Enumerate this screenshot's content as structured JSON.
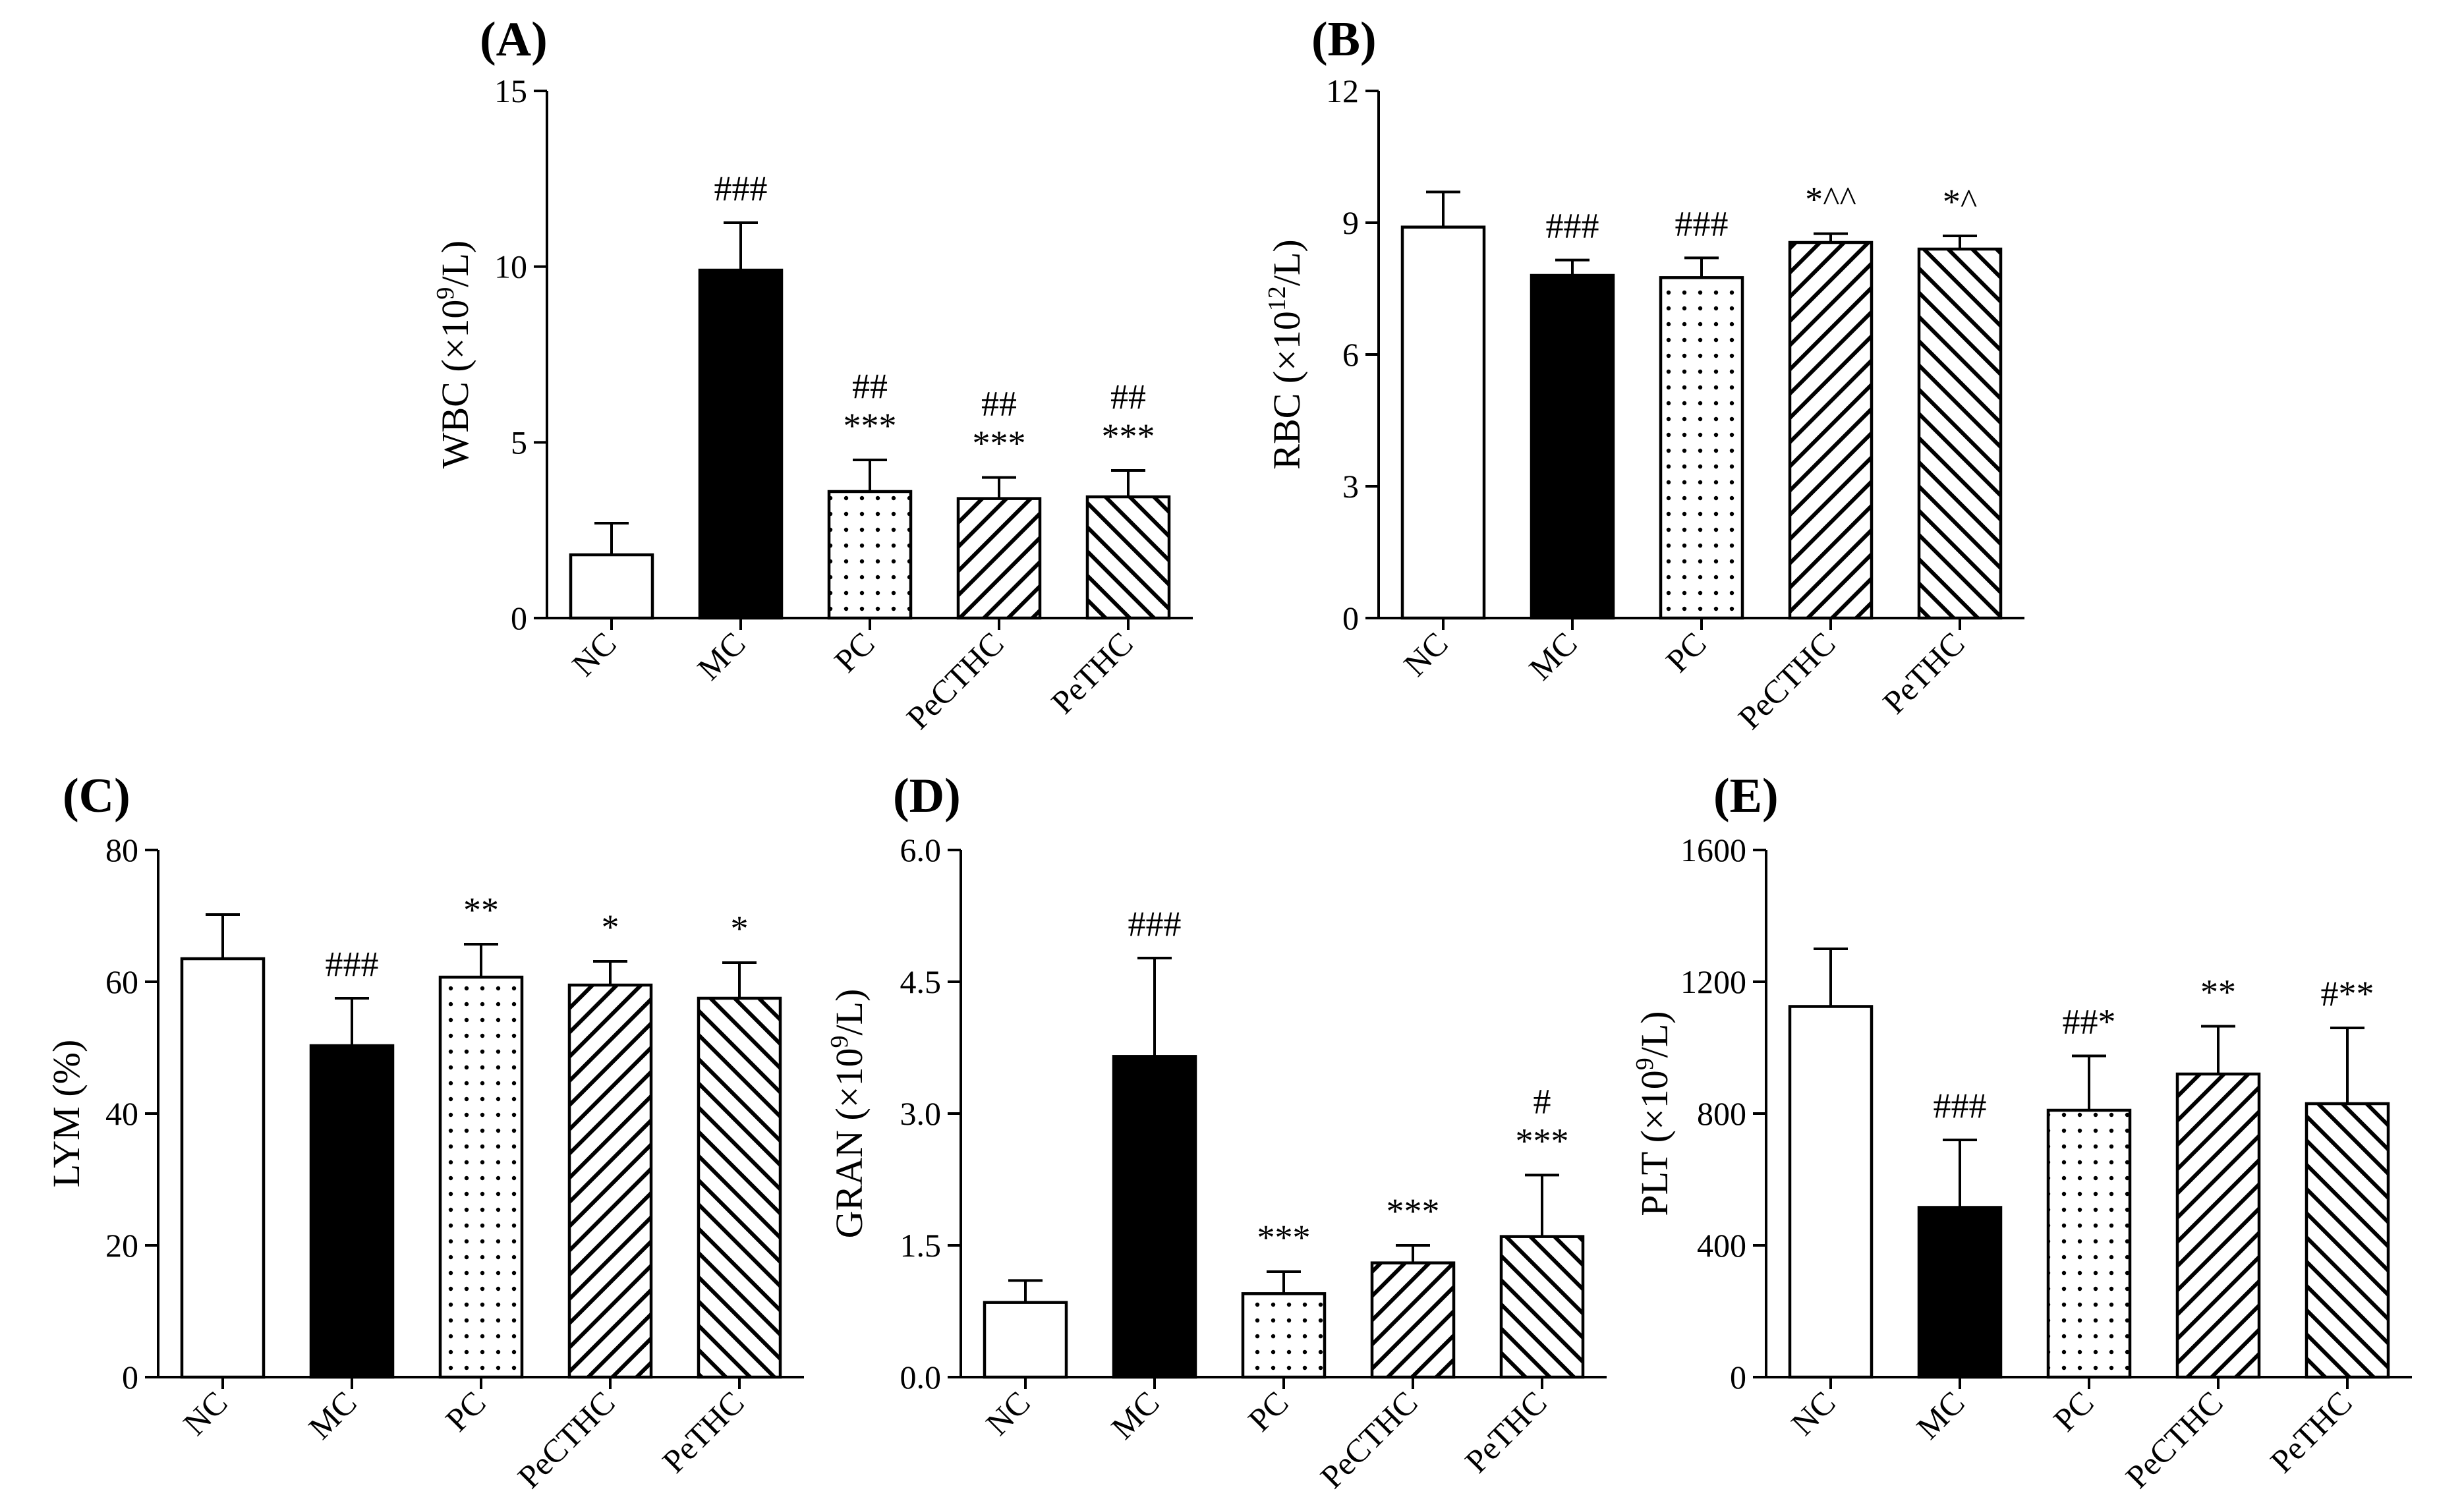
{
  "figure": {
    "panels_count": 5
  },
  "styles": {
    "ink": "#000000",
    "background": "#ffffff",
    "fills": [
      "open",
      "solid",
      "dots",
      "diag-right",
      "diag-left"
    ]
  },
  "chart_data": [
    {
      "type": "bar",
      "panel": "(A)",
      "title": "",
      "ylabel_pre": "WBC (×10",
      "ylabel_sup": "9",
      "ylabel_post": "/L)",
      "xlabel": "",
      "categories": [
        "NC",
        "MC",
        "PC",
        "PeCTHC",
        "PeTHC"
      ],
      "values": [
        1.8,
        9.9,
        3.6,
        3.4,
        3.45
      ],
      "errors": [
        0.9,
        1.35,
        0.9,
        0.6,
        0.75
      ],
      "ylim": [
        0,
        15
      ],
      "yticks": [
        0,
        5,
        10,
        15
      ],
      "ytick_labels": [
        "0",
        "5",
        "10",
        "15"
      ],
      "annotations": [
        [],
        [
          "###"
        ],
        [
          "##",
          "***"
        ],
        [
          "##",
          "***"
        ],
        [
          "##",
          "***"
        ]
      ]
    },
    {
      "type": "bar",
      "panel": "(B)",
      "title": "",
      "ylabel_pre": "RBC (×10",
      "ylabel_sup": "12",
      "ylabel_post": "/L)",
      "xlabel": "",
      "categories": [
        "NC",
        "MC",
        "PC",
        "PeCTHC",
        "PeTHC"
      ],
      "values": [
        8.9,
        7.8,
        7.75,
        8.55,
        8.4
      ],
      "errors": [
        0.8,
        0.35,
        0.45,
        0.2,
        0.3
      ],
      "ylim": [
        0,
        12
      ],
      "yticks": [
        0,
        3,
        6,
        9,
        12
      ],
      "ytick_labels": [
        "0",
        "3",
        "6",
        "9",
        "12"
      ],
      "annotations": [
        [],
        [
          "###"
        ],
        [
          "###"
        ],
        [
          "*^^"
        ],
        [
          "*^"
        ]
      ]
    },
    {
      "type": "bar",
      "panel": "(C)",
      "title": "",
      "ylabel_pre": "LYM (%)",
      "ylabel_sup": "",
      "ylabel_post": "",
      "xlabel": "",
      "categories": [
        "NC",
        "MC",
        "PC",
        "PeCTHC",
        "PeTHC"
      ],
      "values": [
        63.5,
        50.3,
        60.7,
        59.5,
        57.5
      ],
      "errors": [
        6.7,
        7.2,
        5.0,
        3.6,
        5.4
      ],
      "ylim": [
        0,
        80
      ],
      "yticks": [
        0,
        20,
        40,
        60,
        80
      ],
      "ytick_labels": [
        "0",
        "20",
        "40",
        "60",
        "80"
      ],
      "annotations": [
        [],
        [
          "###"
        ],
        [
          "**"
        ],
        [
          "*"
        ],
        [
          "*"
        ]
      ]
    },
    {
      "type": "bar",
      "panel": "(D)",
      "title": "",
      "ylabel_pre": "GRAN (×10",
      "ylabel_sup": "9",
      "ylabel_post": "/L)",
      "xlabel": "",
      "categories": [
        "NC",
        "MC",
        "PC",
        "PeCTHC",
        "PeTHC"
      ],
      "values": [
        0.85,
        3.65,
        0.95,
        1.3,
        1.6
      ],
      "errors": [
        0.25,
        1.12,
        0.25,
        0.2,
        0.7
      ],
      "ylim": [
        0,
        6
      ],
      "yticks": [
        0,
        1.5,
        3,
        4.5,
        6
      ],
      "ytick_labels": [
        "0.0",
        "1.5",
        "3.0",
        "4.5",
        "6.0"
      ],
      "annotations": [
        [],
        [
          "###"
        ],
        [
          "***"
        ],
        [
          "***"
        ],
        [
          "#",
          "***"
        ]
      ]
    },
    {
      "type": "bar",
      "panel": "(E)",
      "title": "",
      "ylabel_pre": "PLT (×10",
      "ylabel_sup": "9",
      "ylabel_post": "/L)",
      "xlabel": "",
      "categories": [
        "NC",
        "MC",
        "PC",
        "PeCTHC",
        "PeTHC"
      ],
      "values": [
        1125,
        515,
        810,
        920,
        830
      ],
      "errors": [
        175,
        205,
        165,
        145,
        230
      ],
      "ylim": [
        0,
        1600
      ],
      "yticks": [
        0,
        400,
        800,
        1200,
        1600
      ],
      "ytick_labels": [
        "0",
        "400",
        "800",
        "1200",
        "1600"
      ],
      "annotations": [
        [],
        [
          "###"
        ],
        [
          "##*"
        ],
        [
          "**"
        ],
        [
          "#**"
        ]
      ]
    }
  ]
}
